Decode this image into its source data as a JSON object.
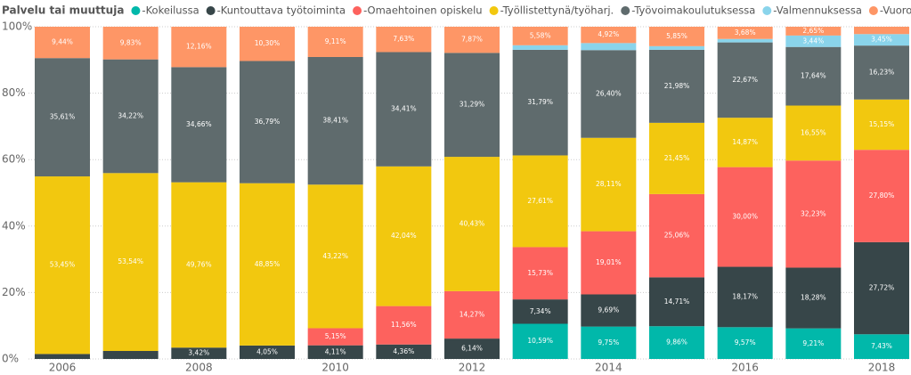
{
  "chart_data": {
    "type": "stacked_bar_100",
    "legend_title": "Palvelu tai muuttuja",
    "categories": [
      "2006",
      null,
      "2008",
      null,
      "2010",
      null,
      "2012",
      null,
      "2014",
      null,
      "2016",
      null,
      "2018"
    ],
    "ylim": [
      0,
      100
    ],
    "yticks": [
      {
        "value": 0,
        "label": "0%"
      },
      {
        "value": 20,
        "label": "20%"
      },
      {
        "value": 40,
        "label": "40%"
      },
      {
        "value": 60,
        "label": "60%"
      },
      {
        "value": 80,
        "label": "80%"
      },
      {
        "value": 100,
        "label": "100%"
      }
    ],
    "grid": true,
    "series": [
      {
        "name": "-Kokeilussa",
        "color": "#01B8AA",
        "values": [
          0,
          0,
          0,
          0,
          0,
          0,
          0,
          10.59,
          9.75,
          9.86,
          9.57,
          9.21,
          7.43
        ],
        "value_labels": [
          null,
          null,
          null,
          null,
          null,
          null,
          null,
          "10,59%",
          "9,75%",
          "9,86%",
          "9,57%",
          "9,21%",
          "7,43%"
        ]
      },
      {
        "name": "-Kuntouttava työtoiminta",
        "color": "#374649",
        "values": [
          1.5,
          2.41,
          3.42,
          4.05,
          4.11,
          4.36,
          6.14,
          7.34,
          9.69,
          14.71,
          18.17,
          18.28,
          27.72
        ],
        "value_labels": [
          null,
          null,
          "3,42%",
          "4,05%",
          "4,11%",
          "4,36%",
          "6,14%",
          "7,34%",
          "9,69%",
          "14,71%",
          "18,17%",
          "18,28%",
          "27,72%"
        ]
      },
      {
        "name": "-Omaehtoinen opiskelu",
        "color": "#FD625E",
        "values": [
          0,
          0,
          0,
          0,
          5.15,
          11.56,
          14.27,
          15.73,
          19.01,
          25.06,
          30.0,
          32.23,
          27.8
        ],
        "value_labels": [
          null,
          null,
          null,
          null,
          "5,15%",
          "11,56%",
          "14,27%",
          "15,73%",
          "19,01%",
          "25,06%",
          "30,00%",
          "32,23%",
          "27,80%"
        ]
      },
      {
        "name": "-Työllistettynä/työharj.",
        "color": "#F2C80F",
        "values": [
          53.45,
          53.54,
          49.76,
          48.85,
          43.22,
          42.04,
          40.43,
          27.61,
          28.11,
          21.45,
          14.87,
          16.55,
          15.15
        ],
        "value_labels": [
          "53,45%",
          "53,54%",
          "49,76%",
          "48,85%",
          "43,22%",
          "42,04%",
          "40,43%",
          "27,61%",
          "28,11%",
          "21,45%",
          "14,87%",
          "16,55%",
          "15,15%"
        ]
      },
      {
        "name": "-Työvoimakoulutuksessa",
        "color": "#5F6B6D",
        "values": [
          35.61,
          34.22,
          34.66,
          36.79,
          38.41,
          34.41,
          31.29,
          31.79,
          26.4,
          21.98,
          22.67,
          17.64,
          16.23
        ],
        "value_labels": [
          "35,61%",
          "34,22%",
          "34,66%",
          "36,79%",
          "38,41%",
          "34,41%",
          "31,29%",
          "31,79%",
          "26,40%",
          "21,98%",
          "22,67%",
          "17,64%",
          "16,23%"
        ]
      },
      {
        "name": "-Valmennuksessa",
        "color": "#8AD4EB",
        "values": [
          0,
          0,
          0,
          0,
          0,
          0,
          0,
          1.36,
          2.12,
          1.09,
          1.04,
          3.44,
          3.45
        ],
        "value_labels": [
          null,
          null,
          null,
          null,
          null,
          null,
          null,
          null,
          null,
          null,
          null,
          "3,44%",
          "3,45%"
        ]
      },
      {
        "name": "-Vuorotteluvapaasijaiset",
        "color": "#FE9666",
        "values": [
          9.44,
          9.83,
          12.16,
          10.3,
          9.11,
          7.63,
          7.87,
          5.58,
          4.92,
          5.85,
          3.68,
          2.65,
          2.22
        ],
        "value_labels": [
          "9,44%",
          "9,83%",
          "12,16%",
          "10,30%",
          "9,11%",
          "7,63%",
          "7,87%",
          "5,58%",
          "4,92%",
          "5,85%",
          "3,68%",
          "2,65%",
          null
        ]
      }
    ]
  }
}
